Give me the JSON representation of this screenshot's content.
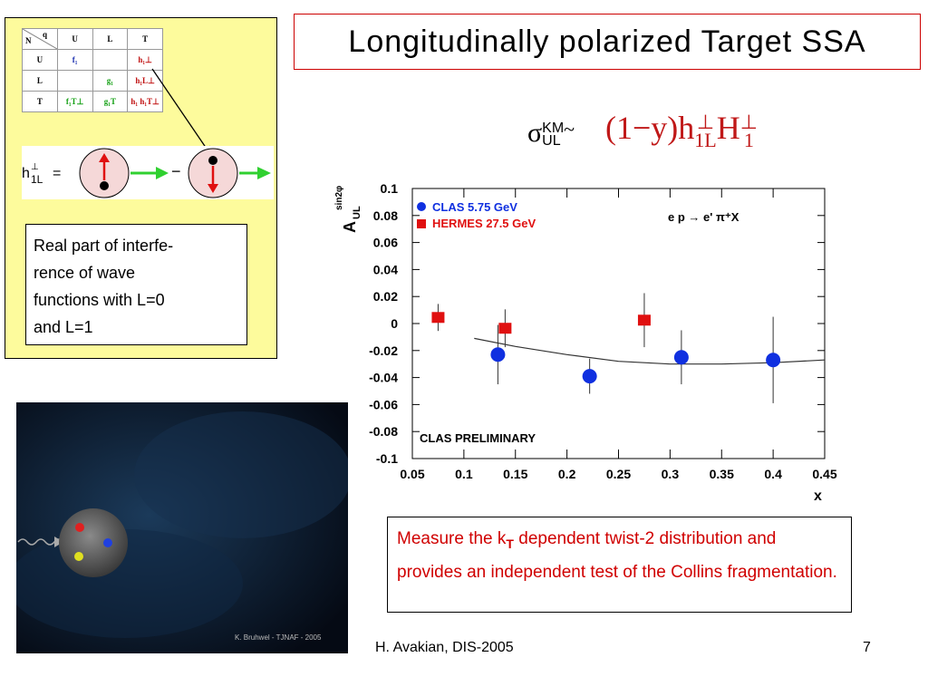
{
  "title": "Longitudinally  polarized  Target  SSA",
  "table": {
    "corner_n": "N",
    "corner_q": "q",
    "col_headers": [
      "U",
      "L",
      "T"
    ],
    "row_headers": [
      "U",
      "L",
      "T"
    ],
    "cells": [
      [
        "f₁",
        "",
        "h₁⊥"
      ],
      [
        "",
        "g₁",
        "h₁L⊥"
      ],
      [
        "f₁T⊥",
        "g₁T",
        "h₁  h₁T⊥"
      ]
    ]
  },
  "state_eq": {
    "lhs": "h",
    "sup": "⊥",
    "sub": "1L",
    "eq": "=",
    "minus": "−"
  },
  "interference_text": "Real part of interfe-rence of wave functions with L=0 and L=1",
  "interference_lines": [
    "Real part of interfe-",
    "rence of wave",
    "functions with L=0",
    "and L=1"
  ],
  "sigma": {
    "symbol": "σ",
    "sup": "KM",
    "sub": "UL",
    "tilde": "~"
  },
  "formula": {
    "prefix": "(1−y)h",
    "sub1": "1L",
    "sup1": "⊥",
    "mid": "H",
    "sub2": "1",
    "sup2": "⊥"
  },
  "chart_data": {
    "type": "scatter",
    "xlabel": "x",
    "ylabel": "A",
    "ylabel_sup": "sin2φ",
    "ylabel_sub": "UL",
    "xlim": [
      0.05,
      0.45
    ],
    "ylim": [
      -0.1,
      0.1
    ],
    "x_ticks": [
      "0.05",
      "0.1",
      "0.15",
      "0.2",
      "0.25",
      "0.3",
      "0.35",
      "0.4",
      "0.45"
    ],
    "y_ticks": [
      "-0.1",
      "-0.08",
      "-0.06",
      "-0.04",
      "-0.02",
      "0",
      "0.02",
      "0.04",
      "0.06",
      "0.08",
      "0.1"
    ],
    "reaction": "e p → e' π⁺X",
    "annotation": "CLAS PRELIMINARY",
    "series": [
      {
        "name": "CLAS 5.75 GeV",
        "color": "#1030e0",
        "marker": "circle",
        "x": [
          0.133,
          0.222,
          0.311,
          0.4
        ],
        "y": [
          -0.023,
          -0.039,
          -0.025,
          -0.027
        ],
        "err": [
          0.022,
          0.013,
          0.02,
          0.032
        ]
      },
      {
        "name": "HERMES 27.5 GeV",
        "color": "#e01010",
        "marker": "square",
        "x": [
          0.075,
          0.14,
          0.275
        ],
        "y": [
          0.0045,
          -0.0035,
          0.0025
        ],
        "err": [
          0.01,
          0.014,
          0.02
        ]
      }
    ],
    "curve": {
      "x": [
        0.11,
        0.15,
        0.2,
        0.25,
        0.3,
        0.35,
        0.4,
        0.45
      ],
      "y": [
        -0.011,
        -0.017,
        -0.023,
        -0.028,
        -0.03,
        -0.03,
        -0.029,
        -0.027
      ]
    }
  },
  "note": {
    "before": "Measure the k",
    "sub": "T",
    "after": " dependent twist-2 distribution and provides an independent test of the Collins fragmentation."
  },
  "image_credit": "K. Bruhwel - TJNAF - 2005",
  "footer": "H. Avakian,  DIS-2005",
  "page_number": "7"
}
